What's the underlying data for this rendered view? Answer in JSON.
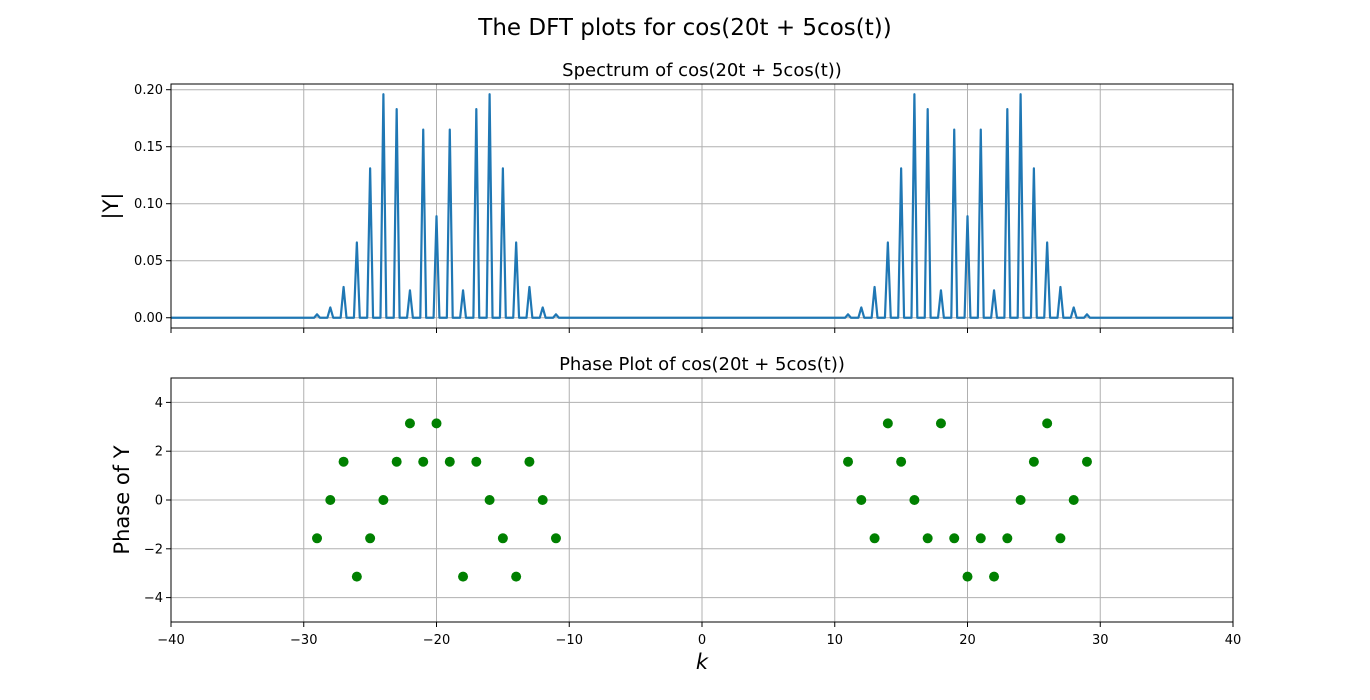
{
  "figure": {
    "suptitle": "The DFT plots for cos(20t + 5cos(t))"
  },
  "chart_data": [
    {
      "type": "line",
      "title": "Spectrum of cos(20t + 5cos(t))",
      "xlabel": "",
      "ylabel": "|Y|",
      "xlim": [
        -40,
        40
      ],
      "ylim": [
        -0.009,
        0.205
      ],
      "xticks": [
        -40,
        -30,
        -20,
        -10,
        0,
        10,
        20,
        30,
        40
      ],
      "yticks": [
        0.0,
        0.05,
        0.1,
        0.15,
        0.2
      ],
      "ytick_labels": [
        "0.00",
        "0.05",
        "0.10",
        "0.15",
        "0.20"
      ],
      "xtick_labels_visible": false,
      "grid": true,
      "color": "#1f77b4",
      "peaks": {
        "k": [
          -29,
          -28,
          -27,
          -26,
          -25,
          -24,
          -23,
          -22,
          -21,
          -20,
          -19,
          -18,
          -17,
          -16,
          -15,
          -14,
          -13,
          -12,
          -11,
          11,
          12,
          13,
          14,
          15,
          16,
          17,
          18,
          19,
          20,
          21,
          22,
          23,
          24,
          25,
          26,
          27,
          28,
          29
        ],
        "magnitude": [
          0.003,
          0.009,
          0.027,
          0.066,
          0.131,
          0.196,
          0.183,
          0.024,
          0.165,
          0.089,
          0.165,
          0.024,
          0.183,
          0.196,
          0.131,
          0.066,
          0.027,
          0.009,
          0.003,
          0.003,
          0.009,
          0.027,
          0.066,
          0.131,
          0.196,
          0.183,
          0.024,
          0.165,
          0.089,
          0.165,
          0.024,
          0.183,
          0.196,
          0.131,
          0.066,
          0.027,
          0.009,
          0.003
        ]
      }
    },
    {
      "type": "scatter",
      "title": "Phase Plot of cos(20t + 5cos(t))",
      "xlabel": "k",
      "ylabel": "Phase of Y",
      "xlim": [
        -40,
        40
      ],
      "ylim": [
        -5,
        5
      ],
      "xticks": [
        -40,
        -30,
        -20,
        -10,
        0,
        10,
        20,
        30,
        40
      ],
      "xtick_labels": [
        "−40",
        "−30",
        "−20",
        "−10",
        "0",
        "10",
        "20",
        "30",
        "40"
      ],
      "yticks": [
        -4,
        -2,
        0,
        2,
        4
      ],
      "ytick_labels": [
        "−4",
        "−2",
        "0",
        "2",
        "4"
      ],
      "grid": true,
      "color": "#008000",
      "points": {
        "x": [
          -29,
          -28,
          -27,
          -26,
          -25,
          -24,
          -23,
          -22,
          -21,
          -20,
          -19,
          -18,
          -17,
          -16,
          -15,
          -14,
          -13,
          -12,
          -11,
          11,
          12,
          13,
          14,
          15,
          16,
          17,
          18,
          19,
          20,
          21,
          22,
          23,
          24,
          25,
          26,
          27,
          28,
          29
        ],
        "y": [
          -1.57,
          0.0,
          1.57,
          -3.14,
          -1.57,
          0.0,
          1.57,
          3.14,
          1.57,
          3.14,
          1.57,
          -3.14,
          1.57,
          0.0,
          -1.57,
          -3.14,
          1.57,
          0.0,
          -1.57,
          1.57,
          0.0,
          -1.57,
          3.14,
          1.57,
          0.0,
          -1.57,
          3.14,
          -1.57,
          -3.14,
          -1.57,
          -3.14,
          -1.57,
          0.0,
          1.57,
          3.14,
          -1.57,
          0.0,
          1.57
        ]
      }
    }
  ]
}
